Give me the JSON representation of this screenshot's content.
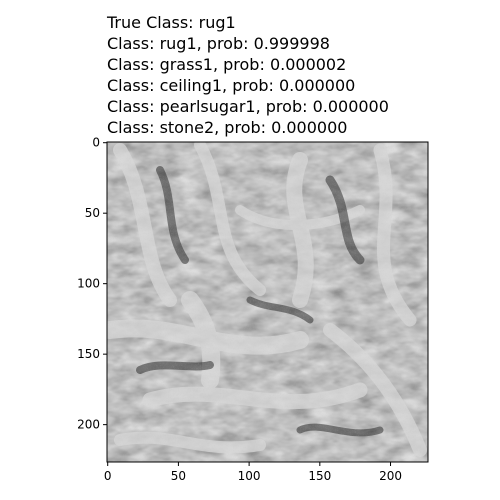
{
  "title_lines": {
    "true_class": "True Class: rug1",
    "pred_1": "Class: rug1, prob: 0.999998",
    "pred_2": "Class: grass1, prob: 0.000002",
    "pred_3": "Class: ceiling1, prob: 0.000000",
    "pred_4": "Class: pearlsugar1, prob: 0.000000",
    "pred_5": "Class: stone2, prob: 0.000000"
  },
  "image": {
    "description_icon": "grayscale-rug-texture",
    "colormap": "gray"
  },
  "axes": {
    "x_ticks": [
      "0",
      "50",
      "100",
      "150",
      "200"
    ],
    "y_ticks": [
      "0",
      "50",
      "100",
      "150",
      "200"
    ],
    "x_tick_values": [
      0,
      50,
      100,
      150,
      200
    ],
    "y_tick_values": [
      0,
      50,
      100,
      150,
      200
    ],
    "xlim": [
      -0.5,
      226.5
    ],
    "ylim": [
      226.5,
      -0.5
    ]
  }
}
